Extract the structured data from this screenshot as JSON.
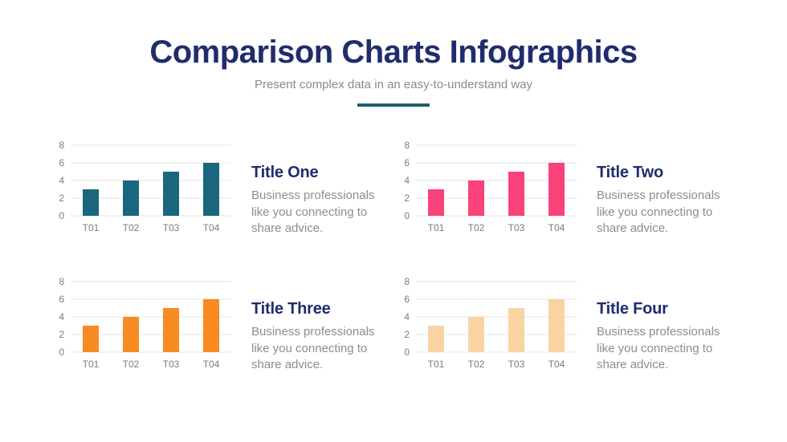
{
  "header": {
    "title": "Comparison Charts Infographics",
    "subtitle": "Present complex data in an easy-to-understand way"
  },
  "theme": {
    "title_color": "#1F2C6E",
    "subtitle_color": "#8A8A8A",
    "underline_color": "#1C5E72",
    "axis_label_color": "#7C7C7C",
    "gridline_color": "#E4E4E4",
    "body_text_color": "#8D8D8D",
    "background": "#FFFFFF"
  },
  "chart_data": [
    {
      "type": "bar",
      "title": "Title One",
      "description": "Business professionals like you connecting to share advice.",
      "categories": [
        "T01",
        "T02",
        "T03",
        "T04"
      ],
      "values": [
        3,
        4,
        5,
        6
      ],
      "bar_color": "#19667E",
      "y_ticks": [
        8,
        6,
        4,
        2,
        0
      ],
      "ylim": [
        0,
        8
      ],
      "grid": true,
      "legend": "none"
    },
    {
      "type": "bar",
      "title": "Title Two",
      "description": "Business professionals like you connecting to share advice.",
      "categories": [
        "T01",
        "T02",
        "T03",
        "T04"
      ],
      "values": [
        3,
        4,
        5,
        6
      ],
      "bar_color": "#F94278",
      "y_ticks": [
        8,
        6,
        4,
        2,
        0
      ],
      "ylim": [
        0,
        8
      ],
      "grid": true,
      "legend": "none"
    },
    {
      "type": "bar",
      "title": "Title Three",
      "description": "Business professionals like you connecting to share advice.",
      "categories": [
        "T01",
        "T02",
        "T03",
        "T04"
      ],
      "values": [
        3,
        4,
        5,
        6
      ],
      "bar_color": "#F78B21",
      "y_ticks": [
        8,
        6,
        4,
        2,
        0
      ],
      "ylim": [
        0,
        8
      ],
      "grid": true,
      "legend": "none"
    },
    {
      "type": "bar",
      "title": "Title Four",
      "description": "Business professionals like you connecting to share advice.",
      "categories": [
        "T01",
        "T02",
        "T03",
        "T04"
      ],
      "values": [
        3,
        4,
        5,
        6
      ],
      "bar_color": "#F9D4A2",
      "y_ticks": [
        8,
        6,
        4,
        2,
        0
      ],
      "ylim": [
        0,
        8
      ],
      "grid": true,
      "legend": "none"
    }
  ]
}
